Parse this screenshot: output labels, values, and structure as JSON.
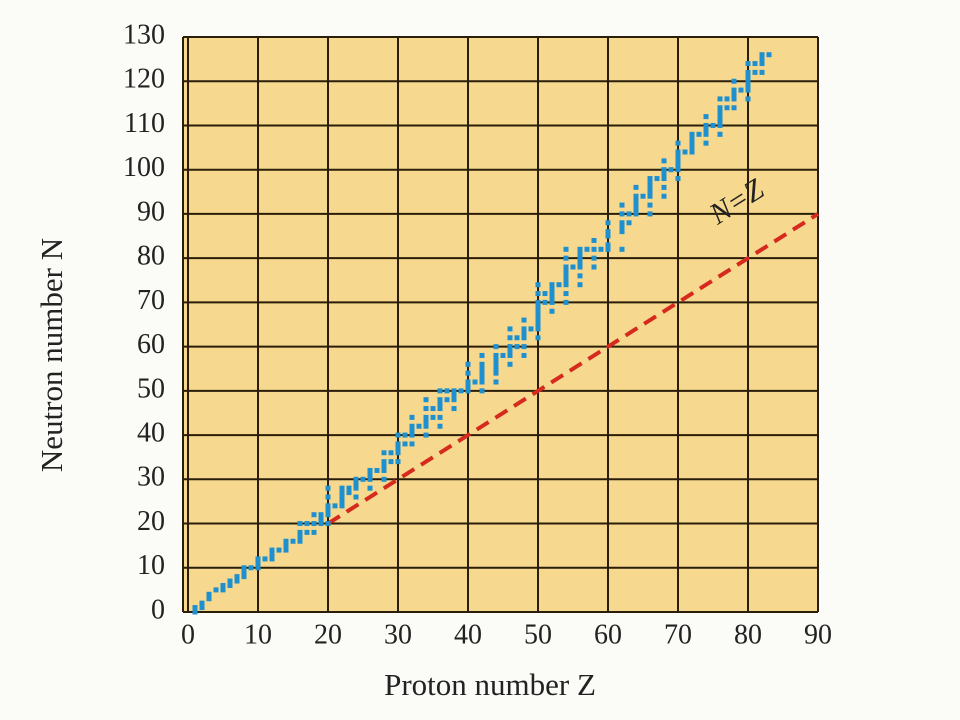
{
  "chart_data": {
    "type": "scatter",
    "xlabel": "Proton number Z",
    "ylabel": "Neutron number N",
    "x": [
      1,
      1,
      2,
      2,
      3,
      3,
      4,
      5,
      5,
      6,
      6,
      7,
      7,
      8,
      8,
      8,
      9,
      10,
      10,
      10,
      11,
      12,
      12,
      12,
      13,
      14,
      14,
      14,
      15,
      16,
      16,
      16,
      16,
      17,
      17,
      18,
      18,
      18,
      19,
      19,
      19,
      20,
      20,
      20,
      20,
      20,
      20,
      21,
      22,
      22,
      22,
      22,
      22,
      23,
      23,
      24,
      24,
      24,
      24,
      25,
      26,
      26,
      26,
      26,
      27,
      28,
      28,
      28,
      28,
      28,
      29,
      29,
      30,
      30,
      30,
      30,
      30,
      31,
      31,
      32,
      32,
      32,
      32,
      32,
      33,
      34,
      34,
      34,
      34,
      34,
      34,
      35,
      35,
      36,
      36,
      36,
      36,
      36,
      36,
      37,
      37,
      38,
      38,
      38,
      38,
      39,
      40,
      40,
      40,
      40,
      40,
      41,
      42,
      42,
      42,
      42,
      42,
      42,
      42,
      44,
      44,
      44,
      44,
      44,
      44,
      44,
      45,
      46,
      46,
      46,
      46,
      46,
      46,
      47,
      47,
      48,
      48,
      48,
      48,
      48,
      48,
      49,
      50,
      50,
      50,
      50,
      50,
      50,
      50,
      50,
      50,
      50,
      51,
      51,
      52,
      52,
      52,
      52,
      52,
      52,
      53,
      54,
      54,
      54,
      54,
      54,
      54,
      54,
      54,
      54,
      55,
      56,
      56,
      56,
      56,
      56,
      56,
      56,
      57,
      58,
      58,
      58,
      58,
      59,
      60,
      60,
      60,
      60,
      60,
      62,
      62,
      62,
      62,
      62,
      62,
      63,
      63,
      64,
      64,
      64,
      64,
      64,
      64,
      65,
      66,
      66,
      66,
      66,
      66,
      66,
      66,
      67,
      68,
      68,
      68,
      68,
      68,
      68,
      69,
      70,
      70,
      70,
      70,
      70,
      70,
      70,
      71,
      72,
      72,
      72,
      72,
      72,
      73,
      74,
      74,
      74,
      74,
      74,
      75,
      76,
      76,
      76,
      76,
      76,
      76,
      76,
      77,
      77,
      78,
      78,
      78,
      78,
      78,
      79,
      80,
      80,
      80,
      80,
      80,
      80,
      80,
      81,
      81,
      82,
      82,
      82,
      82,
      83
    ],
    "values": [
      0,
      1,
      1,
      2,
      3,
      4,
      5,
      5,
      6,
      6,
      7,
      7,
      8,
      8,
      9,
      10,
      10,
      10,
      11,
      12,
      12,
      12,
      13,
      14,
      14,
      14,
      15,
      16,
      16,
      16,
      17,
      18,
      20,
      18,
      20,
      18,
      20,
      22,
      20,
      21,
      22,
      20,
      22,
      23,
      24,
      26,
      28,
      24,
      24,
      25,
      26,
      27,
      28,
      27,
      28,
      26,
      28,
      29,
      30,
      30,
      28,
      30,
      31,
      32,
      32,
      30,
      32,
      33,
      34,
      36,
      34,
      36,
      34,
      36,
      37,
      38,
      40,
      38,
      40,
      38,
      40,
      41,
      42,
      44,
      42,
      40,
      42,
      43,
      44,
      46,
      48,
      44,
      46,
      42,
      44,
      46,
      47,
      48,
      50,
      48,
      50,
      46,
      48,
      49,
      50,
      50,
      50,
      51,
      52,
      54,
      56,
      52,
      50,
      52,
      53,
      54,
      55,
      56,
      58,
      52,
      54,
      55,
      56,
      57,
      58,
      60,
      58,
      56,
      58,
      59,
      60,
      62,
      64,
      60,
      62,
      58,
      60,
      62,
      63,
      64,
      66,
      64,
      62,
      64,
      65,
      66,
      67,
      68,
      69,
      70,
      72,
      74,
      70,
      72,
      68,
      70,
      71,
      72,
      73,
      74,
      74,
      70,
      72,
      74,
      75,
      76,
      77,
      78,
      80,
      82,
      78,
      74,
      76,
      78,
      79,
      80,
      81,
      82,
      82,
      78,
      80,
      82,
      84,
      82,
      82,
      83,
      85,
      86,
      88,
      82,
      86,
      87,
      88,
      90,
      92,
      88,
      90,
      90,
      91,
      92,
      93,
      94,
      96,
      94,
      90,
      92,
      94,
      95,
      96,
      97,
      98,
      98,
      94,
      96,
      98,
      99,
      100,
      102,
      100,
      98,
      100,
      101,
      102,
      103,
      104,
      106,
      104,
      104,
      105,
      106,
      107,
      108,
      108,
      106,
      108,
      109,
      110,
      112,
      110,
      108,
      110,
      111,
      112,
      113,
      114,
      116,
      114,
      116,
      114,
      116,
      117,
      118,
      120,
      118,
      116,
      118,
      119,
      120,
      121,
      122,
      124,
      122,
      124,
      122,
      124,
      125,
      126,
      126
    ],
    "color": "#1e90d0",
    "reference_line": {
      "label": "N=Z",
      "x": [
        20,
        90
      ],
      "values": [
        20,
        90
      ],
      "color": "#d62a1e"
    },
    "xlim": [
      0,
      90
    ],
    "ylim": [
      0,
      130
    ],
    "xticks": [
      0,
      10,
      20,
      30,
      40,
      50,
      60,
      70,
      80,
      90
    ],
    "yticks": [
      0,
      10,
      20,
      30,
      40,
      50,
      60,
      70,
      80,
      90,
      100,
      110,
      120,
      130
    ],
    "grid": true,
    "plot_background": "#f6d98e"
  }
}
